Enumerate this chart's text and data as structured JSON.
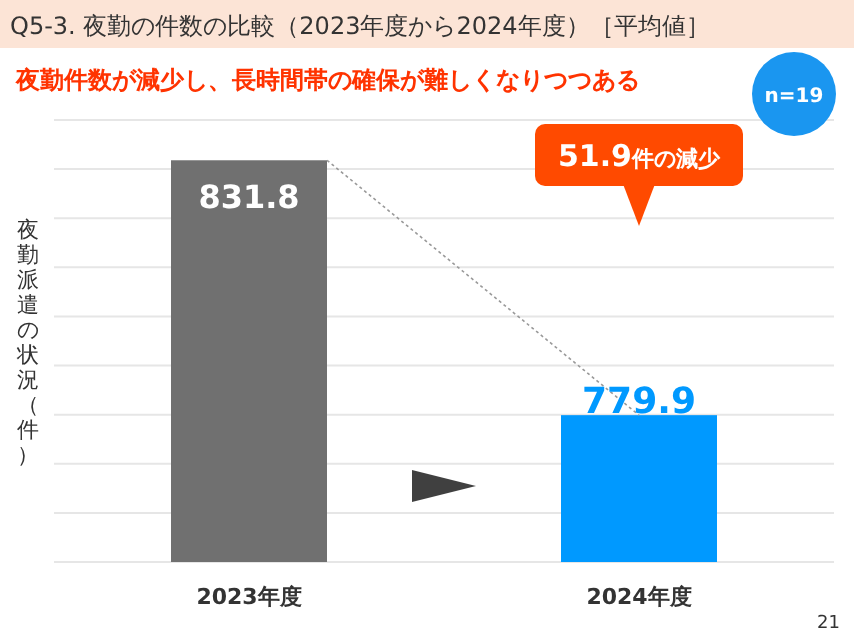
{
  "chart_data": {
    "type": "bar",
    "title": "Q5-3. 夜勤の件数の比較（2023年度から2024年度）［平均値］",
    "subtitle": "夜勤件数が減少し、長時間帯の確保が難しくなりつつある",
    "ylabel": "夜勤派遣の状況（件）",
    "categories": [
      "2023年度",
      "2024年度"
    ],
    "values": [
      831.8,
      779.9
    ],
    "colors": [
      "#707070",
      "#0099ff"
    ],
    "ylim": [
      750,
      840
    ],
    "yticks": [
      {
        "value": 750,
        "label": null
      },
      {
        "value": 760,
        "label": null
      },
      {
        "value": 770,
        "label": null
      },
      {
        "value": 780,
        "label": null
      },
      {
        "value": 790,
        "label": null
      },
      {
        "value": 800,
        "label": null
      },
      {
        "value": 810,
        "label": null
      },
      {
        "value": 820,
        "label": null
      },
      {
        "value": 830,
        "label": null
      },
      {
        "value": 840,
        "label": null
      }
    ],
    "grid": "y",
    "tick_labels": "x",
    "data_labels": true,
    "annotations": [
      "n=19",
      "51.9件の減少",
      "21"
    ]
  }
}
